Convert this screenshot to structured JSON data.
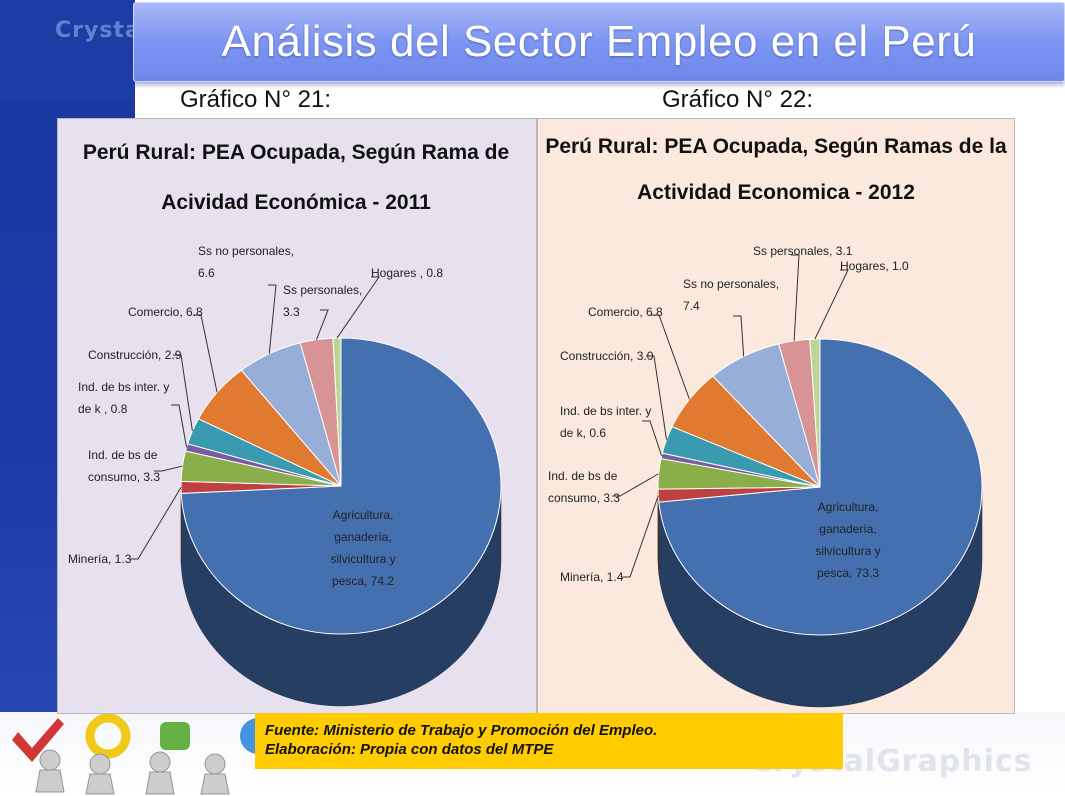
{
  "slide": {
    "title": "Análisis del Sector Empleo en el Perú",
    "captions": [
      "Gráfico N° 21:",
      "Gráfico N° 22:"
    ],
    "background_logo_text": "CrystalGraphics",
    "source_lines": [
      "Fuente: Ministerio de Trabajo y Promoción del Empleo.",
      "Elaboración: Propia con datos del MTPE"
    ]
  },
  "colors": {
    "title_bar": "#7d95f2",
    "source_box": "#ffcc00",
    "chart1_bg": "#e6e0ef",
    "chart2_bg": "#fbe9dd"
  },
  "chart_data": [
    {
      "type": "pie",
      "title_lines": [
        "Perú Rural: PEA Ocupada, Según Rama de",
        "Acividad Económica - 2011"
      ],
      "slices": [
        {
          "label_lines": [
            "Agricultura,",
            "ganadería,",
            "silvicultura y",
            "pesca, 74.2"
          ],
          "value": 74.2,
          "color": "#4570b0"
        },
        {
          "label_lines": [
            "Minería, 1.3"
          ],
          "value": 1.3,
          "color": "#bf4040"
        },
        {
          "label_lines": [
            "Ind. de bs de",
            "consumo, 3.3"
          ],
          "value": 3.3,
          "color": "#8aae4a"
        },
        {
          "label_lines": [
            "Ind. de bs inter. y",
            "de k , 0.8"
          ],
          "value": 0.8,
          "color": "#7a5aa0"
        },
        {
          "label_lines": [
            "Construcción, 2.9"
          ],
          "value": 2.9,
          "color": "#3a9ab0"
        },
        {
          "label_lines": [
            "Comercio, 6.8"
          ],
          "value": 6.8,
          "color": "#e07a30"
        },
        {
          "label_lines": [
            "Ss no personales,",
            "6.6"
          ],
          "value": 6.6,
          "color": "#96aed8"
        },
        {
          "label_lines": [
            "Ss personales,",
            "3.3"
          ],
          "value": 3.3,
          "color": "#d89494"
        },
        {
          "label_lines": [
            "Hogares , 0.8"
          ],
          "value": 0.8,
          "color": "#bcd596"
        }
      ]
    },
    {
      "type": "pie",
      "title_lines": [
        "Perú Rural: PEA Ocupada, Según Ramas de la",
        "Actividad Economica - 2012"
      ],
      "slices": [
        {
          "label_lines": [
            "Agricultura,",
            "ganadería,",
            "silvicultura y",
            "pesca, 73.3"
          ],
          "value": 73.3,
          "color": "#4570b0"
        },
        {
          "label_lines": [
            "Minería, 1.4"
          ],
          "value": 1.4,
          "color": "#bf4040"
        },
        {
          "label_lines": [
            "Ind. de bs de",
            "consumo, 3.3"
          ],
          "value": 3.3,
          "color": "#8aae4a"
        },
        {
          "label_lines": [
            "Ind. de bs inter. y",
            "de k, 0.6"
          ],
          "value": 0.6,
          "color": "#7a5aa0"
        },
        {
          "label_lines": [
            "Construcción, 3.0"
          ],
          "value": 3.0,
          "color": "#3a9ab0"
        },
        {
          "label_lines": [
            "Comercio, 6.8"
          ],
          "value": 6.8,
          "color": "#e07a30"
        },
        {
          "label_lines": [
            "Ss no personales,",
            "7.4"
          ],
          "value": 7.4,
          "color": "#96aed8"
        },
        {
          "label_lines": [
            "Ss personales, 3.1"
          ],
          "value": 3.1,
          "color": "#d89494"
        },
        {
          "label_lines": [
            "Hogares, 1.0"
          ],
          "value": 1.0,
          "color": "#bcd596"
        }
      ]
    }
  ]
}
